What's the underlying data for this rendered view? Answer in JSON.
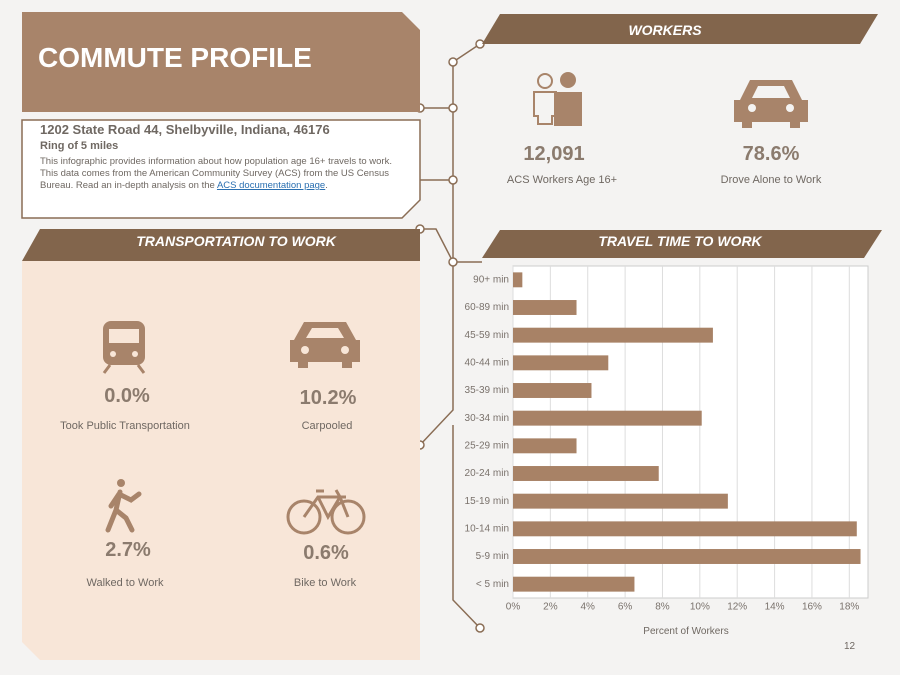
{
  "header": {
    "title": "COMMUTE PROFILE",
    "address": "1202 State Road 44, Shelbyville, Indiana, 46176",
    "ring": "Ring of 5 miles",
    "description": "This infographic provides information about how population age 16+ travels to work. This data comes from the American Community Survey (ACS) from the US Census Bureau. Read an in-depth analysis on the",
    "link": "ACS documentation page",
    "description_end": "."
  },
  "workers": {
    "title": "WORKERS",
    "stats": [
      {
        "value": "12,091",
        "label": "ACS Workers Age 16+"
      },
      {
        "value": "78.6%",
        "label": "Drove Alone to Work"
      }
    ]
  },
  "transportation": {
    "title": "TRANSPORTATION TO WORK",
    "stats": [
      {
        "value": "0.0%",
        "label": "Took Public Transportation"
      },
      {
        "value": "10.2%",
        "label": "Carpooled"
      },
      {
        "value": "2.7%",
        "label": "Walked to Work"
      },
      {
        "value": "0.6%",
        "label": "Bike to Work"
      }
    ]
  },
  "chart_data": {
    "type": "bar",
    "orientation": "horizontal",
    "title": "TRAVEL TIME TO WORK",
    "categories": [
      "90+ min",
      "60-89 min",
      "45-59 min",
      "40-44 min",
      "35-39 min",
      "30-34 min",
      "25-29 min",
      "20-24 min",
      "15-19 min",
      "10-14 min",
      "5-9 min",
      "< 5 min"
    ],
    "values": [
      0.5,
      3.4,
      10.7,
      5.1,
      4.2,
      10.1,
      3.4,
      7.8,
      11.5,
      18.4,
      18.6,
      6.5
    ],
    "color": "#a88266",
    "x_label": "Percent of Workers",
    "xlim": [
      0,
      19
    ],
    "xticks": [
      {
        "value": 0,
        "label": "0%"
      },
      {
        "value": 2,
        "label": "2%"
      },
      {
        "value": 4,
        "label": "4%"
      },
      {
        "value": 6,
        "label": "6%"
      },
      {
        "value": 8,
        "label": "8%"
      },
      {
        "value": 10,
        "label": "10%"
      },
      {
        "value": 12,
        "label": "12%"
      },
      {
        "value": 14,
        "label": "14%"
      },
      {
        "value": 16,
        "label": "16%"
      },
      {
        "value": 18,
        "label": "18%"
      }
    ],
    "grid": true
  },
  "page_number": "12"
}
